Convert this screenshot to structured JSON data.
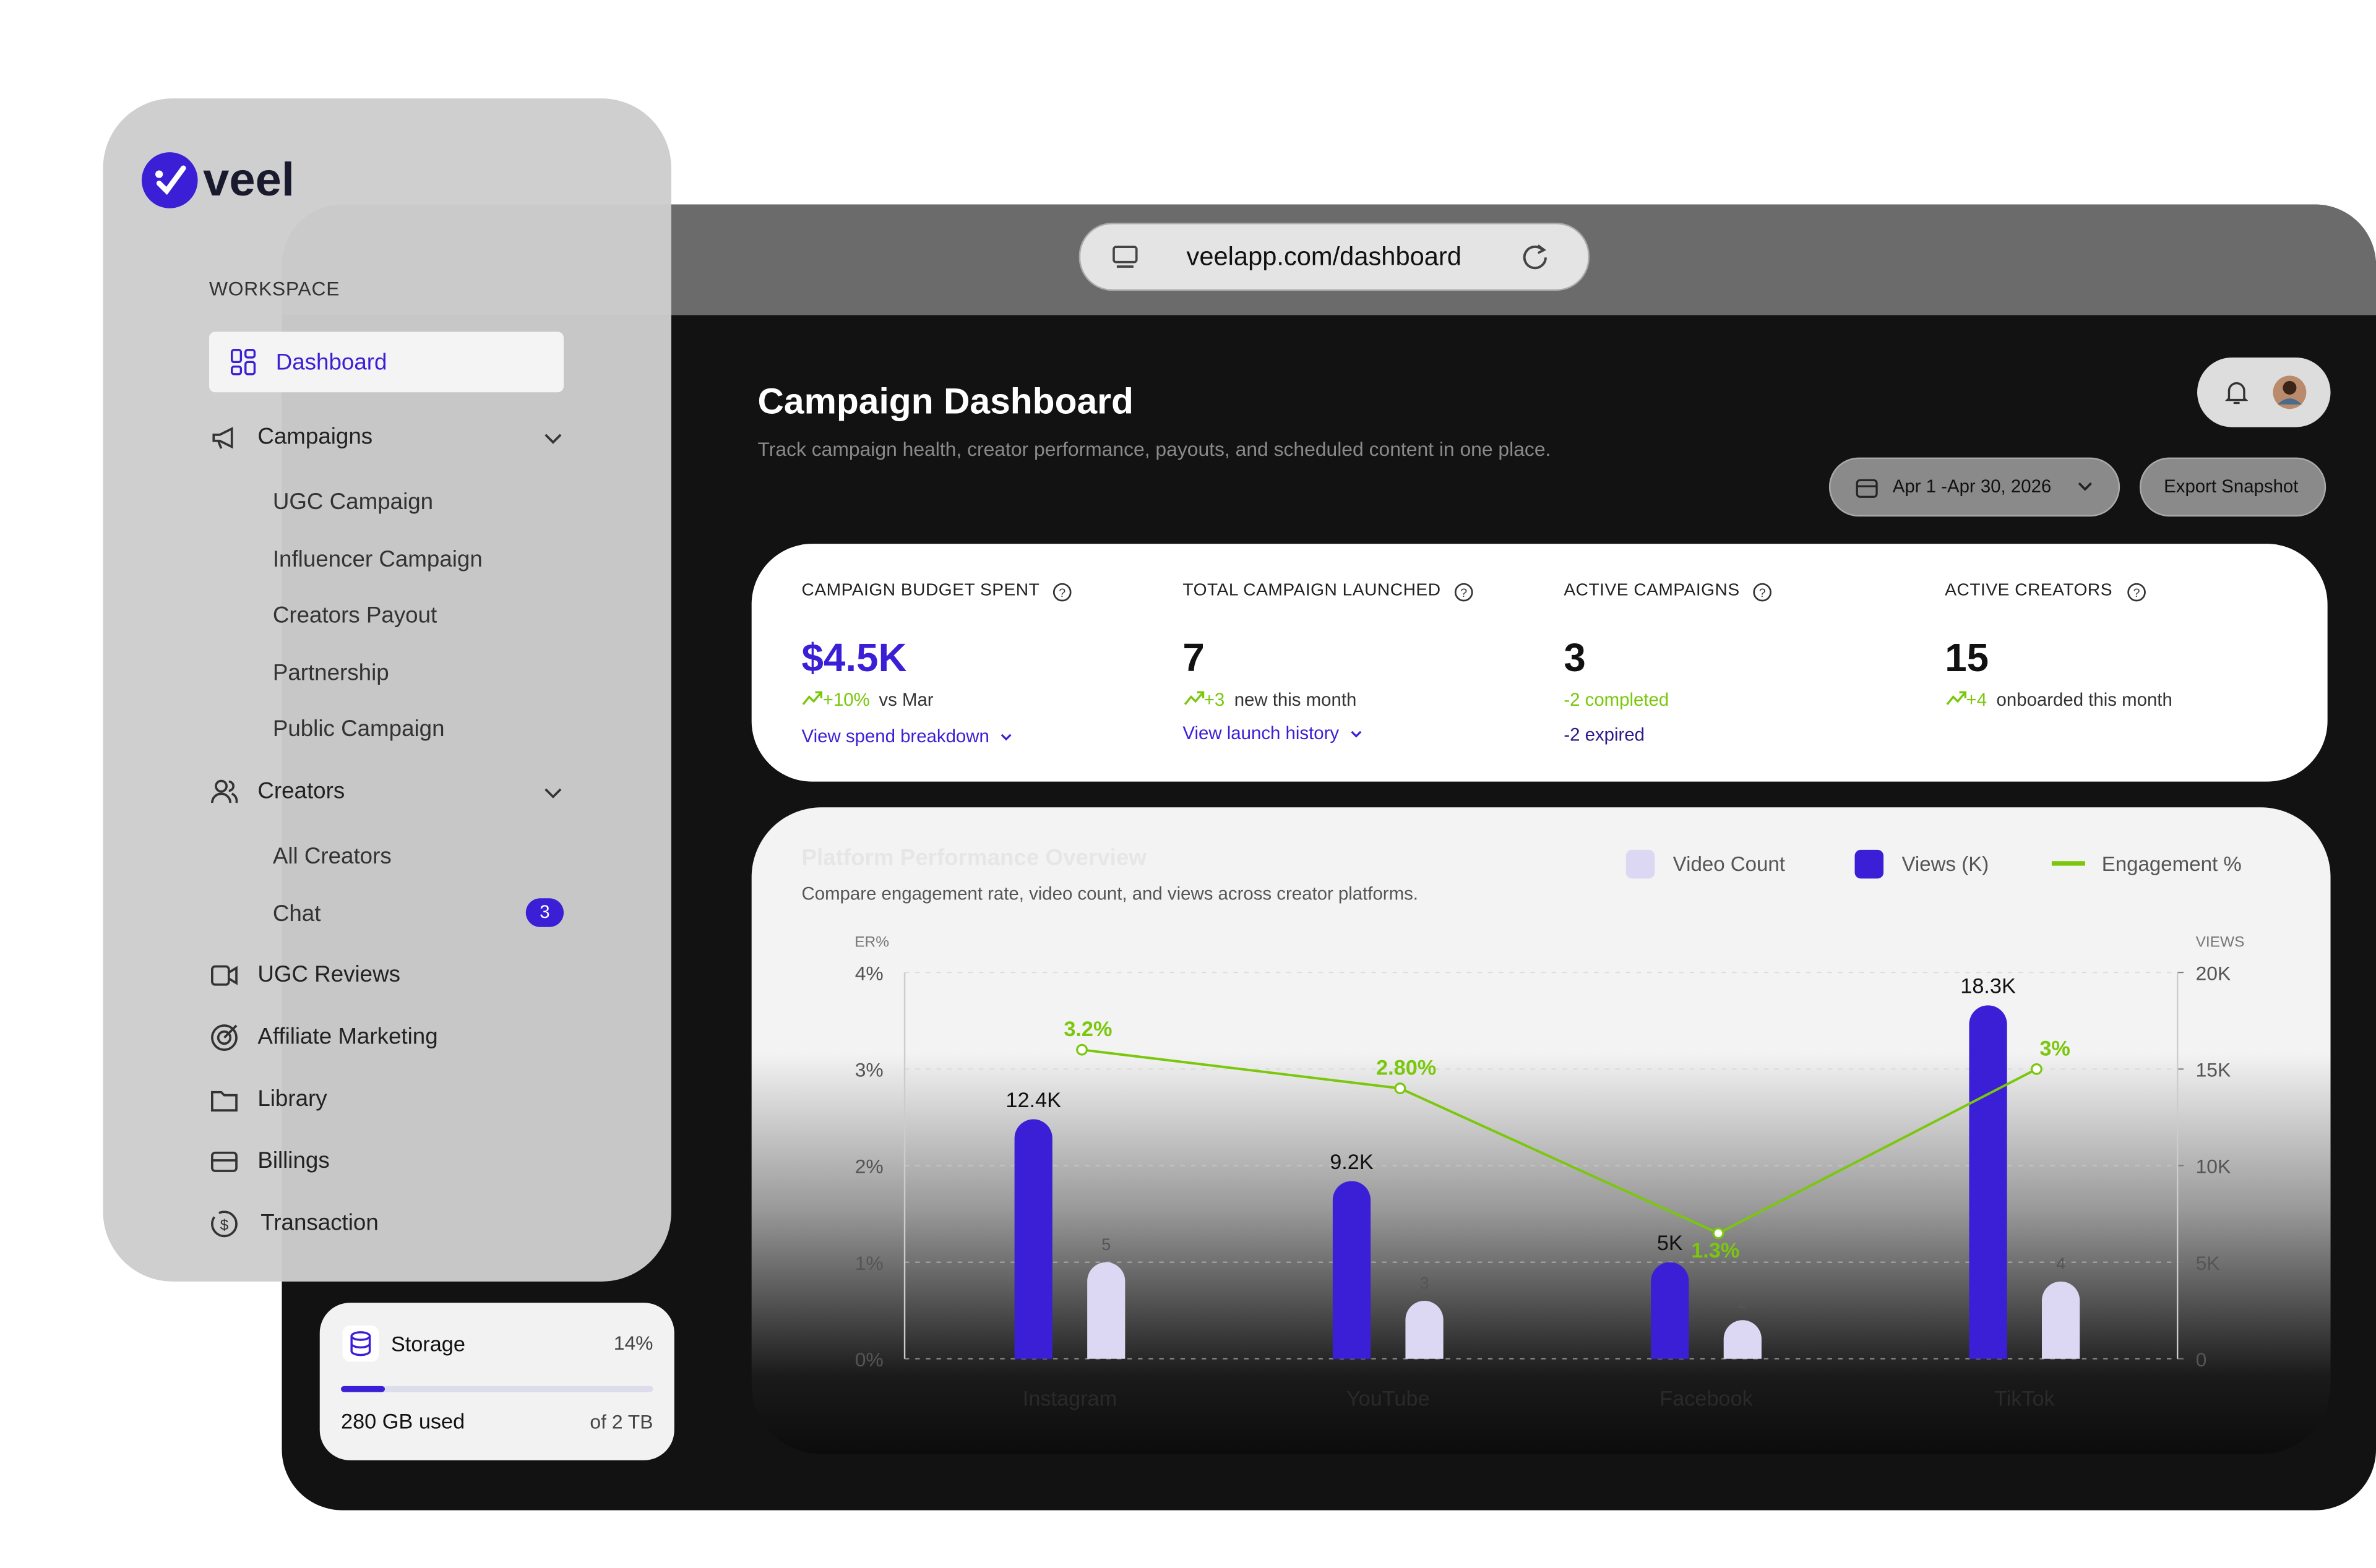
{
  "brand": "veel",
  "browser": {
    "url": "veelapp.com/dashboard"
  },
  "sidebar": {
    "section": "WORKSPACE",
    "dashboard": "Dashboard",
    "campaigns": "Campaigns",
    "campaign_items": [
      "UGC Campaign",
      "Influencer Campaign",
      "Creators Payout",
      "Partnership",
      "Public Campaign"
    ],
    "creators": "Creators",
    "creator_items": [
      "All Creators",
      "Chat"
    ],
    "chat_badge": 3,
    "more_items": [
      "UGC Reviews",
      "Affiliate Marketing",
      "Library",
      "Billings",
      "Transaction"
    ]
  },
  "storage": {
    "title": "Storage",
    "usage": {
      "value": 14,
      "label": "14%"
    },
    "used": "280 GB used",
    "total": "of 2 TB"
  },
  "header": {
    "title": "Campaign Dashboard",
    "subtitle": "Track campaign health, creator performance, payouts, and scheduled content in one place.",
    "date_range": "Apr 1 -Apr 30, 2026",
    "export": "Export Snapshot"
  },
  "kpis": [
    {
      "label": "CAMPAIGN BUDGET SPENT",
      "value": "$4.5K",
      "delta": "+10%",
      "delta_text": "vs Mar",
      "link": "View spend breakdown"
    },
    {
      "label": "TOTAL CAMPAIGN LAUNCHED",
      "value": "7",
      "delta": "+3",
      "delta_text": "new this month",
      "link": "View launch history"
    },
    {
      "label": "ACTIVE CAMPAIGNS",
      "value": "3",
      "line1": "-2 completed",
      "line2": "-2 expired"
    },
    {
      "label": "ACTIVE CREATORS",
      "value": "15",
      "delta": "+4",
      "delta_text": "onboarded this month"
    }
  ],
  "chart_data": {
    "type": "combo",
    "title": "Platform Performance Overview",
    "subtitle": "Compare engagement rate, video count, and views across creator platforms.",
    "categories": [
      "Instagram",
      "YouTube",
      "Facebook",
      "TikTok"
    ],
    "y_label": "ER%",
    "y2_label": "VIEWS",
    "ylim": [
      0,
      4
    ],
    "yticks": [
      {
        "value": 0,
        "label": "0%"
      },
      {
        "value": 1,
        "label": "1%"
      },
      {
        "value": 2,
        "label": "2%"
      },
      {
        "value": 3,
        "label": "3%"
      },
      {
        "value": 4,
        "label": "4%"
      }
    ],
    "y2lim": [
      0,
      20
    ],
    "y2ticks": [
      0,
      {
        "value": 5,
        "label": "5K"
      },
      {
        "value": 10,
        "label": "10K"
      },
      {
        "value": 15,
        "label": "15K"
      },
      {
        "value": 20,
        "label": "20K"
      }
    ],
    "grid": true,
    "legend": "top-right",
    "series": [
      {
        "name": "Video Count",
        "type": "bar",
        "axis": "y2",
        "color": "#dcd8f3",
        "values": [
          5,
          3,
          2,
          4
        ]
      },
      {
        "name": "Views (K)",
        "type": "bar",
        "axis": "y2",
        "color": "#3b1fd6",
        "values": [
          12.4,
          9.2,
          5,
          18.3
        ],
        "value_labels": [
          "12.4K",
          "9.2K",
          "5K",
          "18.3K"
        ]
      },
      {
        "name": "Engagement %",
        "type": "line",
        "color": "#7ac70c",
        "values": [
          3.2,
          2.8,
          1.3,
          3
        ],
        "value_labels": [
          "3.2%",
          "2.80%",
          "1.3%",
          "3%"
        ]
      }
    ]
  }
}
